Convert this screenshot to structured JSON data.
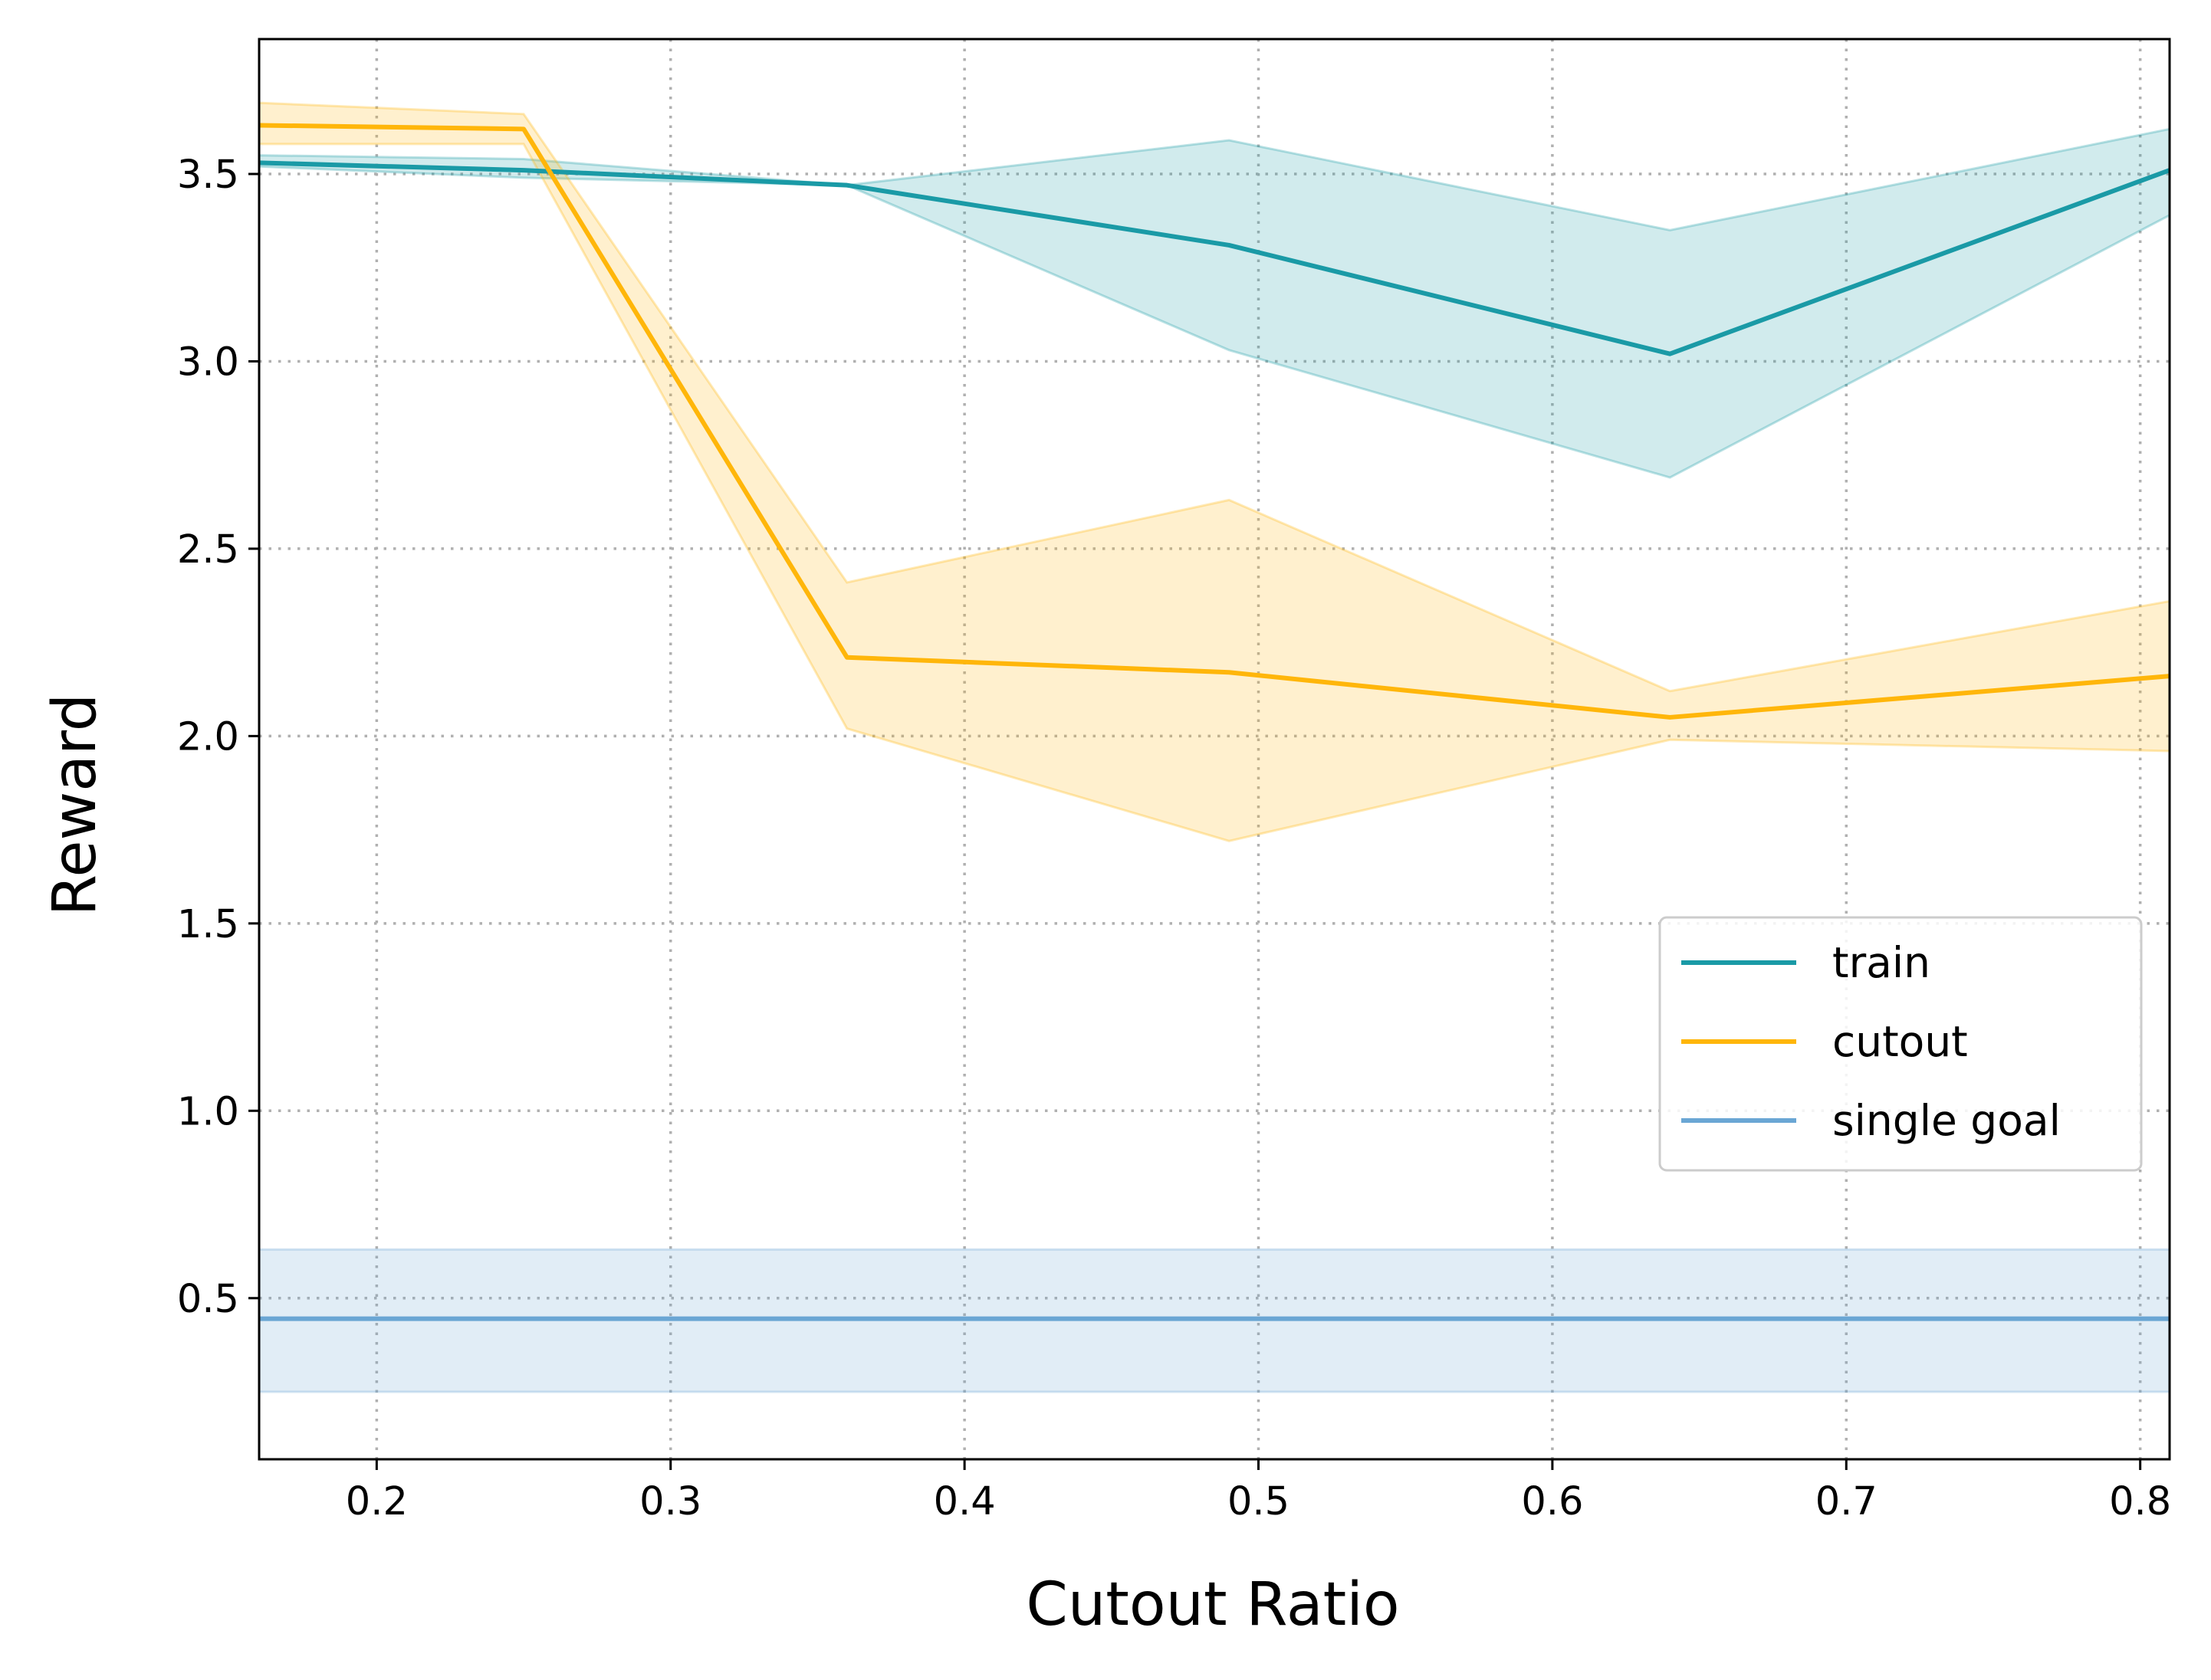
{
  "chart_data": {
    "type": "line",
    "title": "",
    "xlabel": "Cutout Ratio",
    "ylabel": "Reward",
    "xlim": [
      0.16,
      0.81
    ],
    "ylim": [
      0.07,
      3.86
    ],
    "xticks": [
      0.2,
      0.3,
      0.4,
      0.5,
      0.6,
      0.7,
      0.8
    ],
    "yticks": [
      0.5,
      1.0,
      1.5,
      2.0,
      2.5,
      3.0,
      3.5
    ],
    "grid": true,
    "legend_position": "center-right",
    "series": [
      {
        "name": "train",
        "color": "#1a9aa6",
        "x": [
          0.16,
          0.25,
          0.36,
          0.49,
          0.64,
          0.81
        ],
        "y": [
          3.53,
          3.51,
          3.47,
          3.31,
          3.02,
          3.51
        ],
        "lower": [
          3.52,
          3.49,
          3.47,
          3.03,
          2.69,
          3.39
        ],
        "upper": [
          3.55,
          3.54,
          3.47,
          3.59,
          3.35,
          3.62
        ]
      },
      {
        "name": "cutout",
        "color": "#ffb60a",
        "x": [
          0.16,
          0.25,
          0.36,
          0.49,
          0.64,
          0.81
        ],
        "y": [
          3.63,
          3.62,
          2.21,
          2.17,
          2.05,
          2.16
        ],
        "lower": [
          3.58,
          3.58,
          2.02,
          1.72,
          1.99,
          1.96
        ],
        "upper": [
          3.69,
          3.66,
          2.41,
          2.63,
          2.12,
          2.36
        ]
      },
      {
        "name": "single goal",
        "color": "#6aa6d4",
        "x": [
          0.16,
          0.81
        ],
        "y": [
          0.445,
          0.445
        ],
        "lower": [
          0.25,
          0.25
        ],
        "upper": [
          0.63,
          0.63
        ]
      }
    ]
  }
}
